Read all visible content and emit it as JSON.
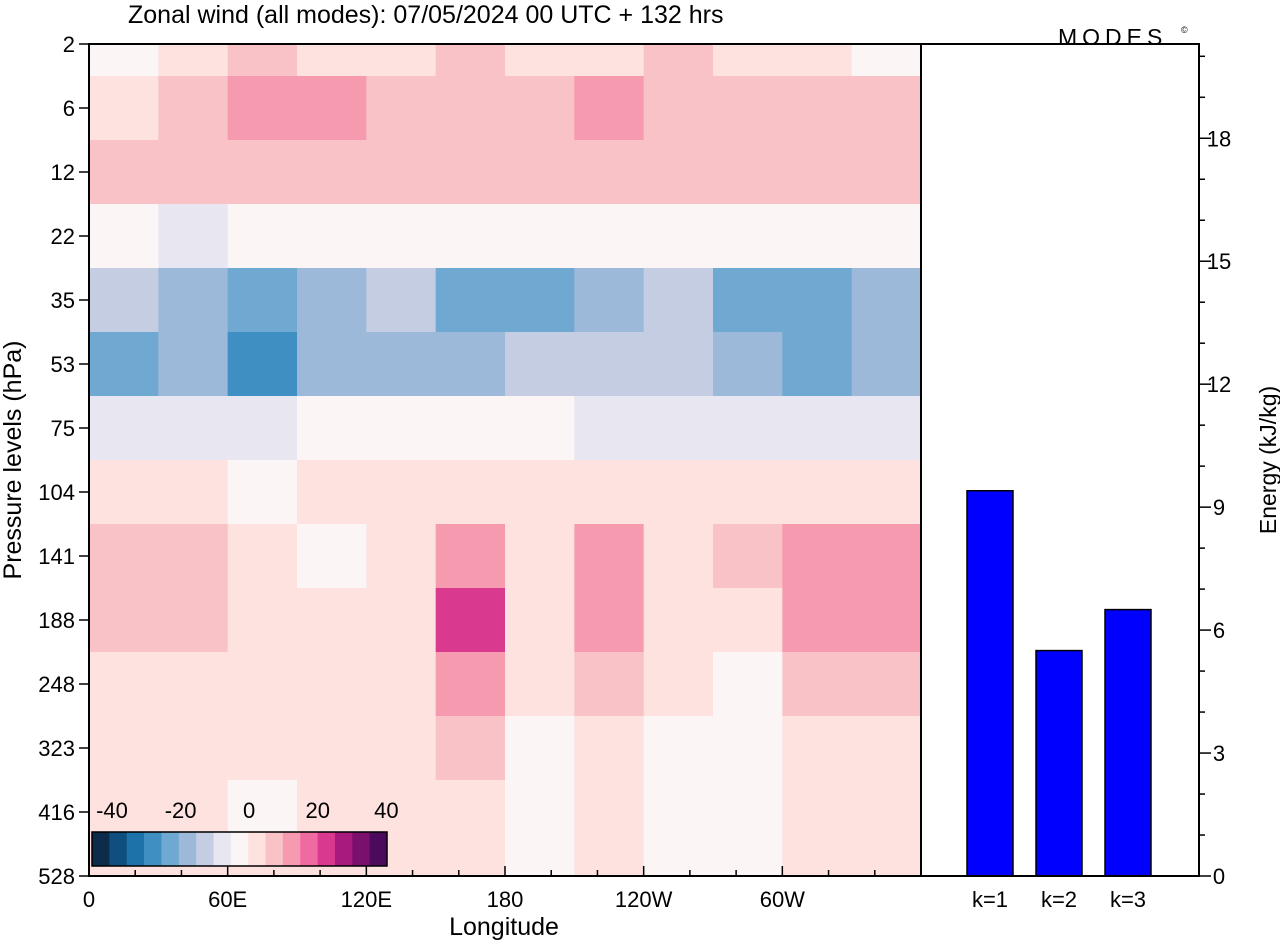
{
  "title": "Zonal wind (all modes):  07/05/2024  00 UTC  + 132 hrs",
  "logo_text": "MODES",
  "logo_mark": "©",
  "chart_data": [
    {
      "type": "heatmap",
      "xlabel": "Longitude",
      "ylabel": "Pressure levels (hPa)",
      "x_ticks": [
        "0",
        "60E",
        "120E",
        "180",
        "120W",
        "60W"
      ],
      "y_ticks": [
        "2",
        "6",
        "12",
        "22",
        "35",
        "53",
        "75",
        "104",
        "141",
        "188",
        "248",
        "323",
        "416",
        "528"
      ],
      "colorbar": {
        "labels": [
          "-40",
          "-20",
          "0",
          "20",
          "40"
        ],
        "colors": [
          "#0d2b4a",
          "#0e4f80",
          "#1d72aa",
          "#3f8fc2",
          "#6fa8d0",
          "#9cb9d9",
          "#c5cde3",
          "#e8e6f0",
          "#fbf5f5",
          "#fde2e0",
          "#f9c2c6",
          "#f69ab0",
          "#ee6aa0",
          "#d93a90",
          "#a81a7d",
          "#7a0f6e",
          "#4b0a5e"
        ]
      },
      "bands": [
        {
          "level": "2",
          "values": [
            -5,
            3,
            5,
            3,
            3,
            5,
            3,
            3,
            5,
            3,
            1,
            -5
          ]
        },
        {
          "level": "6",
          "values": [
            4,
            6,
            10,
            12,
            8,
            6,
            8,
            10,
            8,
            6,
            8,
            6
          ]
        },
        {
          "level": "12",
          "values": [
            5,
            6,
            8,
            8,
            6,
            5,
            6,
            6,
            8,
            5,
            6,
            5
          ]
        },
        {
          "level": "22",
          "values": [
            -5,
            -8,
            -4,
            -3,
            -3,
            -3,
            -4,
            -3,
            -3,
            -4,
            -5,
            -4
          ]
        },
        {
          "level": "35",
          "values": [
            -15,
            -18,
            -22,
            -18,
            -15,
            -25,
            -22,
            -18,
            -15,
            -22,
            -25,
            -18
          ]
        },
        {
          "level": "53",
          "values": [
            -22,
            -18,
            -28,
            -20,
            -17,
            -17,
            -15,
            -15,
            -15,
            -18,
            -22,
            -20
          ]
        },
        {
          "level": "75",
          "values": [
            -8,
            -6,
            -8,
            -5,
            -4,
            -4,
            -4,
            -6,
            -8,
            -8,
            -10,
            -8
          ]
        },
        {
          "level": "104",
          "values": [
            2,
            0,
            -2,
            0,
            2,
            3,
            4,
            3,
            4,
            1,
            3,
            2
          ]
        },
        {
          "level": "141",
          "values": [
            7,
            5,
            0,
            -1,
            3,
            14,
            4,
            10,
            3,
            5,
            11,
            10
          ]
        },
        {
          "level": "188",
          "values": [
            8,
            6,
            1,
            0,
            3,
            20,
            4,
            10,
            3,
            4,
            13,
            12
          ]
        },
        {
          "level": "248",
          "values": [
            4,
            3,
            1,
            0,
            2,
            10,
            2,
            5,
            0,
            -3,
            6,
            5
          ]
        },
        {
          "level": "323",
          "values": [
            1,
            0,
            0,
            0,
            1,
            5,
            -2,
            1,
            -2,
            -4,
            1,
            1
          ]
        },
        {
          "level": "416",
          "values": [
            0,
            0,
            -1,
            0,
            1,
            3,
            -3,
            0,
            -2,
            -3,
            0,
            0
          ]
        },
        {
          "level": "528",
          "values": [
            0,
            0,
            0,
            0,
            1,
            2,
            -2,
            0,
            -1,
            -2,
            0,
            0
          ]
        }
      ]
    },
    {
      "type": "bar",
      "categories": [
        "k=1",
        "k=2",
        "k=3"
      ],
      "values": [
        9.4,
        5.5,
        6.5
      ],
      "ylabel": "Energy (kJ/kg)",
      "ylim": [
        0,
        20.3
      ],
      "y_ticks": [
        0,
        3,
        6,
        9,
        12,
        15,
        18
      ],
      "bar_color": "#0000ff"
    }
  ]
}
